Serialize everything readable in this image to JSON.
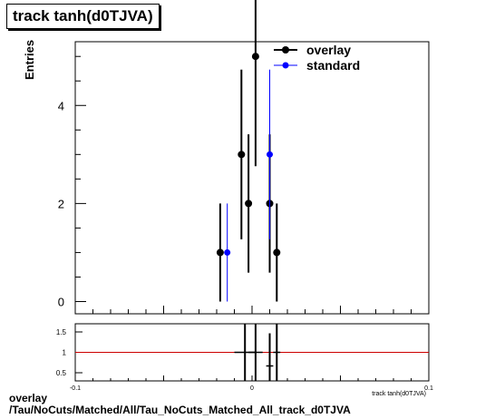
{
  "chart_data": [
    {
      "type": "scatter",
      "title": "track tanh(d0TJVA)",
      "ylabel": "Entries",
      "xlabel": "track tanh(d0TJVA)",
      "xlim": [
        -0.1,
        0.1
      ],
      "ylim": [
        -0.25,
        5.3
      ],
      "yticks": [
        0,
        2,
        4
      ],
      "legend_position": "top-right",
      "series": [
        {
          "name": "overlay",
          "color": "#000000",
          "points": [
            {
              "x": -0.018,
              "y": 1,
              "err": 1
            },
            {
              "x": -0.006,
              "y": 3,
              "err": 1.73
            },
            {
              "x": -0.002,
              "y": 2,
              "err": 1.41
            },
            {
              "x": 0.002,
              "y": 5,
              "err": 2.24
            },
            {
              "x": 0.01,
              "y": 2,
              "err": 1.41
            },
            {
              "x": 0.014,
              "y": 1,
              "err": 1
            }
          ]
        },
        {
          "name": "standard",
          "color": "#0000ff",
          "points": [
            {
              "x": -0.014,
              "y": 1,
              "err": 1
            },
            {
              "x": 0.01,
              "y": 3,
              "err": 1.73
            }
          ]
        }
      ]
    },
    {
      "type": "scatter",
      "xlim": [
        -0.1,
        0.1
      ],
      "ylim": [
        0.3,
        1.7
      ],
      "yticks": [
        0.5,
        1,
        1.5
      ],
      "xticks": [
        -0.1,
        0,
        0.1
      ],
      "reference_line": 1,
      "reference_color": "#cc0000",
      "points": [
        {
          "x": -0.004,
          "y": 1,
          "err": 1,
          "xerr": 0.006
        },
        {
          "x": 0.002,
          "y": 1,
          "err": 1,
          "xerr": 0.004
        },
        {
          "x": 0.01,
          "y": 0.667,
          "err": 0.8,
          "xerr": 0.002
        },
        {
          "x": 0.014,
          "y": 1,
          "err": 1,
          "xerr": 0.002
        }
      ],
      "xlabel": "track tanh(d0TJVA)"
    }
  ],
  "caption": {
    "line1": "overlay",
    "line2": "/Tau/NoCuts/Matched/All/Tau_NoCuts_Matched_All_track_d0TJVA"
  }
}
